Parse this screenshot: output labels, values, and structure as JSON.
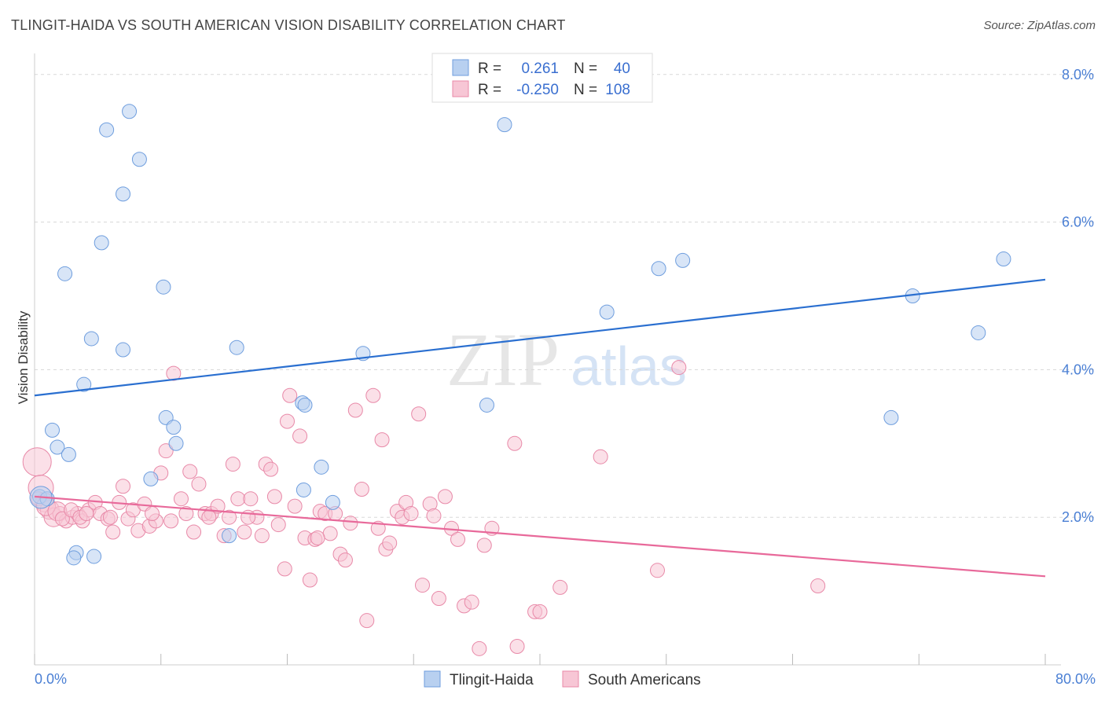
{
  "title": "TLINGIT-HAIDA VS SOUTH AMERICAN VISION DISABILITY CORRELATION CHART",
  "source": "Source: ZipAtlas.com",
  "watermark": {
    "zip": "ZIP",
    "atlas": "atlas"
  },
  "colors": {
    "blue_fill": "#b8d0f0",
    "blue_stroke": "#6f9ede",
    "blue_line": "#2a6fd0",
    "pink_fill": "#f7c6d5",
    "pink_stroke": "#e889a8",
    "pink_line": "#e8699a",
    "axis_text": "#4a7fd4",
    "grid": "#d8d8d8"
  },
  "legend": {
    "rows": [
      {
        "series": "Tlingit-Haida",
        "r_label": "R =",
        "r_value": "0.261",
        "n_label": "N =",
        "n_value": "40"
      },
      {
        "series": "South Americans",
        "r_label": "R =",
        "r_value": "-0.250",
        "n_label": "N =",
        "n_value": "108"
      }
    ]
  },
  "chart_data": {
    "type": "scatter",
    "title": "TLINGIT-HAIDA VS SOUTH AMERICAN VISION DISABILITY CORRELATION CHART",
    "xlabel": "",
    "ylabel": "Vision Disability",
    "xlim": [
      0,
      80
    ],
    "ylim": [
      0,
      8.2
    ],
    "x_tick_labels": [
      "0.0%",
      "80.0%"
    ],
    "y_ticks": [
      2,
      4,
      6,
      8
    ],
    "y_tick_labels": [
      "2.0%",
      "4.0%",
      "6.0%",
      "8.0%"
    ],
    "series": [
      {
        "name": "Tlingit-Haida",
        "color": "blue",
        "trend": {
          "x": [
            0,
            80
          ],
          "y": [
            3.65,
            5.22
          ]
        },
        "points": [
          [
            7.5,
            7.5
          ],
          [
            5.7,
            7.25
          ],
          [
            8.3,
            6.85
          ],
          [
            7.0,
            6.38
          ],
          [
            5.3,
            5.72
          ],
          [
            2.4,
            5.3
          ],
          [
            10.2,
            5.12
          ],
          [
            4.5,
            4.42
          ],
          [
            7.0,
            4.27
          ],
          [
            16.0,
            4.3
          ],
          [
            3.9,
            3.8
          ],
          [
            21.2,
            3.55
          ],
          [
            21.4,
            3.52
          ],
          [
            10.4,
            3.35
          ],
          [
            11.0,
            3.22
          ],
          [
            11.2,
            3.0
          ],
          [
            1.4,
            3.18
          ],
          [
            1.8,
            2.95
          ],
          [
            2.7,
            2.85
          ],
          [
            9.2,
            2.52
          ],
          [
            0.4,
            2.28
          ],
          [
            1.0,
            2.25
          ],
          [
            0.5,
            2.27
          ],
          [
            3.3,
            1.52
          ],
          [
            3.1,
            1.45
          ],
          [
            4.7,
            1.47
          ],
          [
            15.4,
            1.75
          ],
          [
            21.3,
            2.37
          ],
          [
            22.7,
            2.68
          ],
          [
            26.0,
            4.22
          ],
          [
            35.8,
            3.52
          ],
          [
            37.2,
            7.32
          ],
          [
            45.3,
            4.78
          ],
          [
            49.4,
            5.37
          ],
          [
            51.3,
            5.48
          ],
          [
            69.5,
            5.0
          ],
          [
            74.7,
            4.5
          ],
          [
            76.7,
            5.5
          ],
          [
            67.8,
            3.35
          ],
          [
            23.6,
            2.2
          ]
        ],
        "marker_sizes": [
          9,
          9,
          9,
          9,
          9,
          9,
          9,
          9,
          9,
          9,
          9,
          9,
          9,
          9,
          9,
          9,
          9,
          9,
          9,
          9,
          9,
          9,
          14,
          9,
          9,
          9,
          9,
          9,
          9,
          9,
          9,
          9,
          9,
          9,
          9,
          9,
          9,
          9,
          9,
          9
        ]
      },
      {
        "name": "South Americans",
        "color": "pink",
        "trend": {
          "x": [
            0,
            80
          ],
          "y": [
            2.28,
            1.2
          ]
        },
        "points": [
          [
            0.2,
            2.75
          ],
          [
            0.5,
            2.4
          ],
          [
            0.8,
            2.2
          ],
          [
            1.2,
            2.1
          ],
          [
            1.5,
            2.0
          ],
          [
            2.0,
            2.05
          ],
          [
            2.5,
            1.95
          ],
          [
            3.0,
            2.0
          ],
          [
            3.4,
            2.05
          ],
          [
            3.8,
            1.95
          ],
          [
            4.3,
            2.1
          ],
          [
            4.8,
            2.2
          ],
          [
            5.2,
            2.05
          ],
          [
            5.8,
            1.98
          ],
          [
            6.2,
            1.8
          ],
          [
            6.7,
            2.2
          ],
          [
            7.0,
            2.42
          ],
          [
            7.4,
            1.98
          ],
          [
            7.8,
            2.1
          ],
          [
            8.2,
            1.82
          ],
          [
            8.7,
            2.18
          ],
          [
            9.1,
            1.88
          ],
          [
            9.6,
            1.95
          ],
          [
            10.0,
            2.6
          ],
          [
            10.4,
            2.9
          ],
          [
            10.8,
            1.95
          ],
          [
            11.0,
            3.95
          ],
          [
            11.6,
            2.25
          ],
          [
            12.0,
            2.05
          ],
          [
            12.3,
            2.62
          ],
          [
            12.6,
            1.8
          ],
          [
            13.0,
            2.45
          ],
          [
            13.5,
            2.05
          ],
          [
            14.0,
            2.05
          ],
          [
            14.5,
            2.15
          ],
          [
            15.0,
            1.75
          ],
          [
            15.4,
            2.0
          ],
          [
            15.7,
            2.72
          ],
          [
            16.1,
            2.25
          ],
          [
            16.6,
            1.8
          ],
          [
            17.1,
            2.25
          ],
          [
            17.6,
            2.0
          ],
          [
            18.0,
            1.75
          ],
          [
            18.3,
            2.72
          ],
          [
            18.7,
            2.65
          ],
          [
            19.0,
            2.28
          ],
          [
            19.3,
            1.9
          ],
          [
            19.8,
            1.3
          ],
          [
            20.0,
            3.3
          ],
          [
            20.2,
            3.65
          ],
          [
            20.6,
            2.15
          ],
          [
            21.0,
            3.1
          ],
          [
            21.4,
            1.72
          ],
          [
            21.8,
            1.15
          ],
          [
            22.2,
            1.7
          ],
          [
            22.6,
            2.08
          ],
          [
            23.0,
            2.05
          ],
          [
            23.4,
            1.78
          ],
          [
            23.8,
            2.05
          ],
          [
            24.2,
            1.5
          ],
          [
            24.6,
            1.42
          ],
          [
            25.0,
            1.92
          ],
          [
            25.4,
            3.45
          ],
          [
            25.9,
            2.38
          ],
          [
            26.3,
            0.6
          ],
          [
            26.8,
            3.65
          ],
          [
            27.2,
            1.85
          ],
          [
            27.5,
            3.05
          ],
          [
            27.8,
            1.57
          ],
          [
            28.1,
            1.65
          ],
          [
            28.7,
            2.08
          ],
          [
            29.1,
            2.0
          ],
          [
            29.4,
            2.2
          ],
          [
            29.8,
            2.05
          ],
          [
            30.4,
            3.4
          ],
          [
            30.7,
            1.08
          ],
          [
            31.3,
            2.18
          ],
          [
            31.6,
            2.02
          ],
          [
            32.0,
            0.9
          ],
          [
            32.5,
            2.28
          ],
          [
            33.0,
            1.85
          ],
          [
            33.5,
            1.7
          ],
          [
            34.0,
            0.8
          ],
          [
            34.6,
            0.85
          ],
          [
            35.2,
            0.22
          ],
          [
            35.6,
            1.62
          ],
          [
            36.2,
            1.85
          ],
          [
            38.0,
            3.0
          ],
          [
            39.6,
            0.72
          ],
          [
            40.0,
            0.72
          ],
          [
            41.6,
            1.05
          ],
          [
            44.8,
            2.82
          ],
          [
            49.3,
            1.28
          ],
          [
            51.0,
            4.03
          ],
          [
            62.0,
            1.07
          ],
          [
            0.3,
            2.25
          ],
          [
            0.9,
            2.15
          ],
          [
            1.8,
            2.08
          ],
          [
            2.2,
            1.98
          ],
          [
            2.9,
            2.1
          ],
          [
            3.6,
            2.0
          ],
          [
            4.1,
            2.05
          ],
          [
            6.0,
            2.0
          ],
          [
            9.3,
            2.05
          ],
          [
            13.8,
            2.0
          ],
          [
            16.9,
            2.0
          ],
          [
            22.4,
            1.72
          ],
          [
            38.2,
            0.25
          ]
        ],
        "marker_sizes": [
          18,
          16,
          12,
          12,
          12,
          9,
          9,
          9,
          9,
          9,
          9,
          9,
          9,
          9,
          9,
          9,
          9,
          9,
          9,
          9,
          9,
          9,
          9,
          9,
          9,
          9,
          9,
          9,
          9,
          9,
          9,
          9,
          9,
          9,
          9,
          9,
          9,
          9,
          9,
          9,
          9,
          9,
          9,
          9,
          9,
          9,
          9,
          9,
          9,
          9,
          9,
          9,
          9,
          9,
          9,
          9,
          9,
          9,
          9,
          9,
          9,
          9,
          9,
          9,
          9,
          9,
          9,
          9,
          9,
          9,
          9,
          9,
          9,
          9,
          9,
          9,
          9,
          9,
          9,
          9,
          9,
          9,
          9,
          9,
          9,
          9,
          9,
          9,
          9,
          9,
          9,
          9,
          9,
          9,
          9,
          9,
          12,
          12,
          9,
          9,
          9,
          9,
          9,
          9,
          9,
          9,
          9,
          9
        ]
      }
    ]
  }
}
